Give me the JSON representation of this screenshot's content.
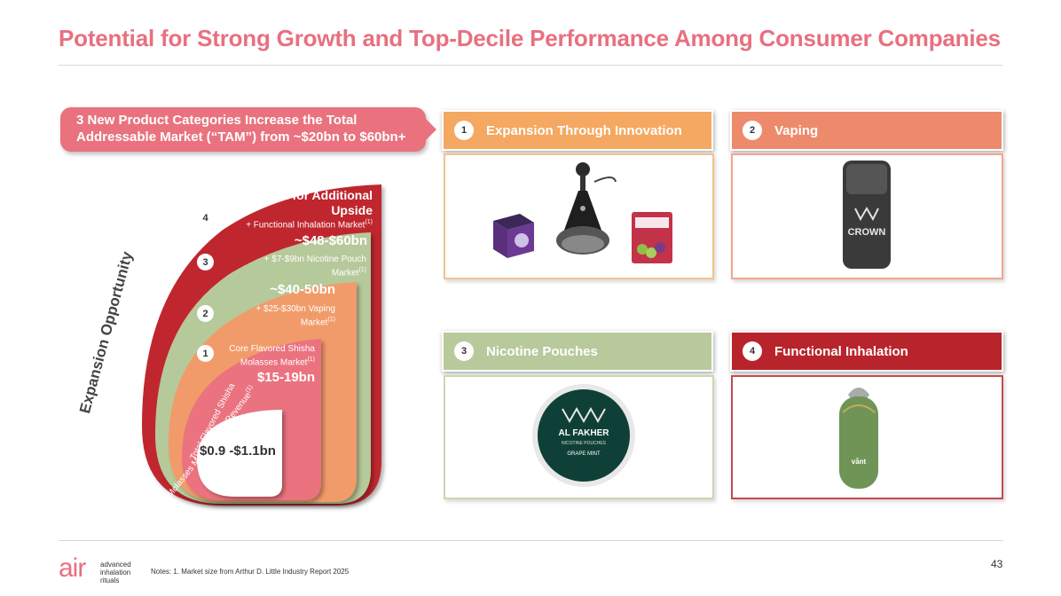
{
  "title": "Potential for Strong Growth and Top-Decile Performance Among Consumer Companies",
  "tam_callout": {
    "line1": "3 New Product Categories Increase the Total",
    "line2": "Addressable Market (“TAM”) from ~$20bn to $60bn+"
  },
  "diagram": {
    "axis_label": "Expansion Opportunity",
    "layers": [
      {
        "num": "4",
        "heading_line1": "Potential for Additional",
        "heading_line2": "Upside",
        "detail": "+ Functional Inhalation Market",
        "sup": "(1)",
        "value": "~$48-$60bn",
        "color": "#c0262d"
      },
      {
        "num": "3",
        "detail_line1": "+ $7-$9bn Nicotine Pouch",
        "detail_line2": "Market",
        "sup": "(1)",
        "value": "~$40-50bn",
        "color": "#b6c99a"
      },
      {
        "num": "2",
        "detail_line1": "+ $25-$30bn Vaping",
        "detail_line2": "Market",
        "sup": "(1)",
        "value": "",
        "color": "#f29b6a"
      },
      {
        "num": "1",
        "detail_line1": "Core Flavored Shisha",
        "detail_line2": "Molasses Market",
        "sup": "(1)",
        "value": "$15-19bn",
        "color": "#ea737f"
      }
    ],
    "core": {
      "curved_line1": "Total Flavored Shisha",
      "curved_line2": "Molasses Manufacturer Revenue",
      "sup": "(1)",
      "value": "$0.9 -$1.1bn"
    }
  },
  "categories": [
    {
      "num": "1",
      "label": "Expansion Through Innovation",
      "color": "#f4a861",
      "border": "#f5c28f",
      "icons": [
        "shisha-tin-icon",
        "hookah-device-icon",
        "molasses-pack-icon"
      ]
    },
    {
      "num": "2",
      "label": "Vaping",
      "color": "#ee8a6c",
      "border": "#f3a58e",
      "icons": [
        "vape-pod-icon"
      ],
      "brand": "CROWN"
    },
    {
      "num": "3",
      "label": "Nicotine Pouches",
      "color": "#b8c99b",
      "border": "#c9d8b0",
      "icons": [
        "pouch-tin-icon"
      ],
      "brand": "AL FAKHER",
      "brand_sub": "NICOTINE POUCHES",
      "flavor": "GRAPE MINT"
    },
    {
      "num": "4",
      "label": "Functional Inhalation",
      "color": "#b8242b",
      "border": "#c44a4f",
      "icons": [
        "inhaler-device-icon"
      ],
      "brand": "vånt"
    }
  ],
  "footer": {
    "notes": "Notes: 1. Market size from Arthur D. Little Industry Report 2025",
    "page_number": "43",
    "logo_main": "air",
    "logo_sub1": "advanced",
    "logo_sub2": "inhalation",
    "logo_sub3": "rituals"
  }
}
